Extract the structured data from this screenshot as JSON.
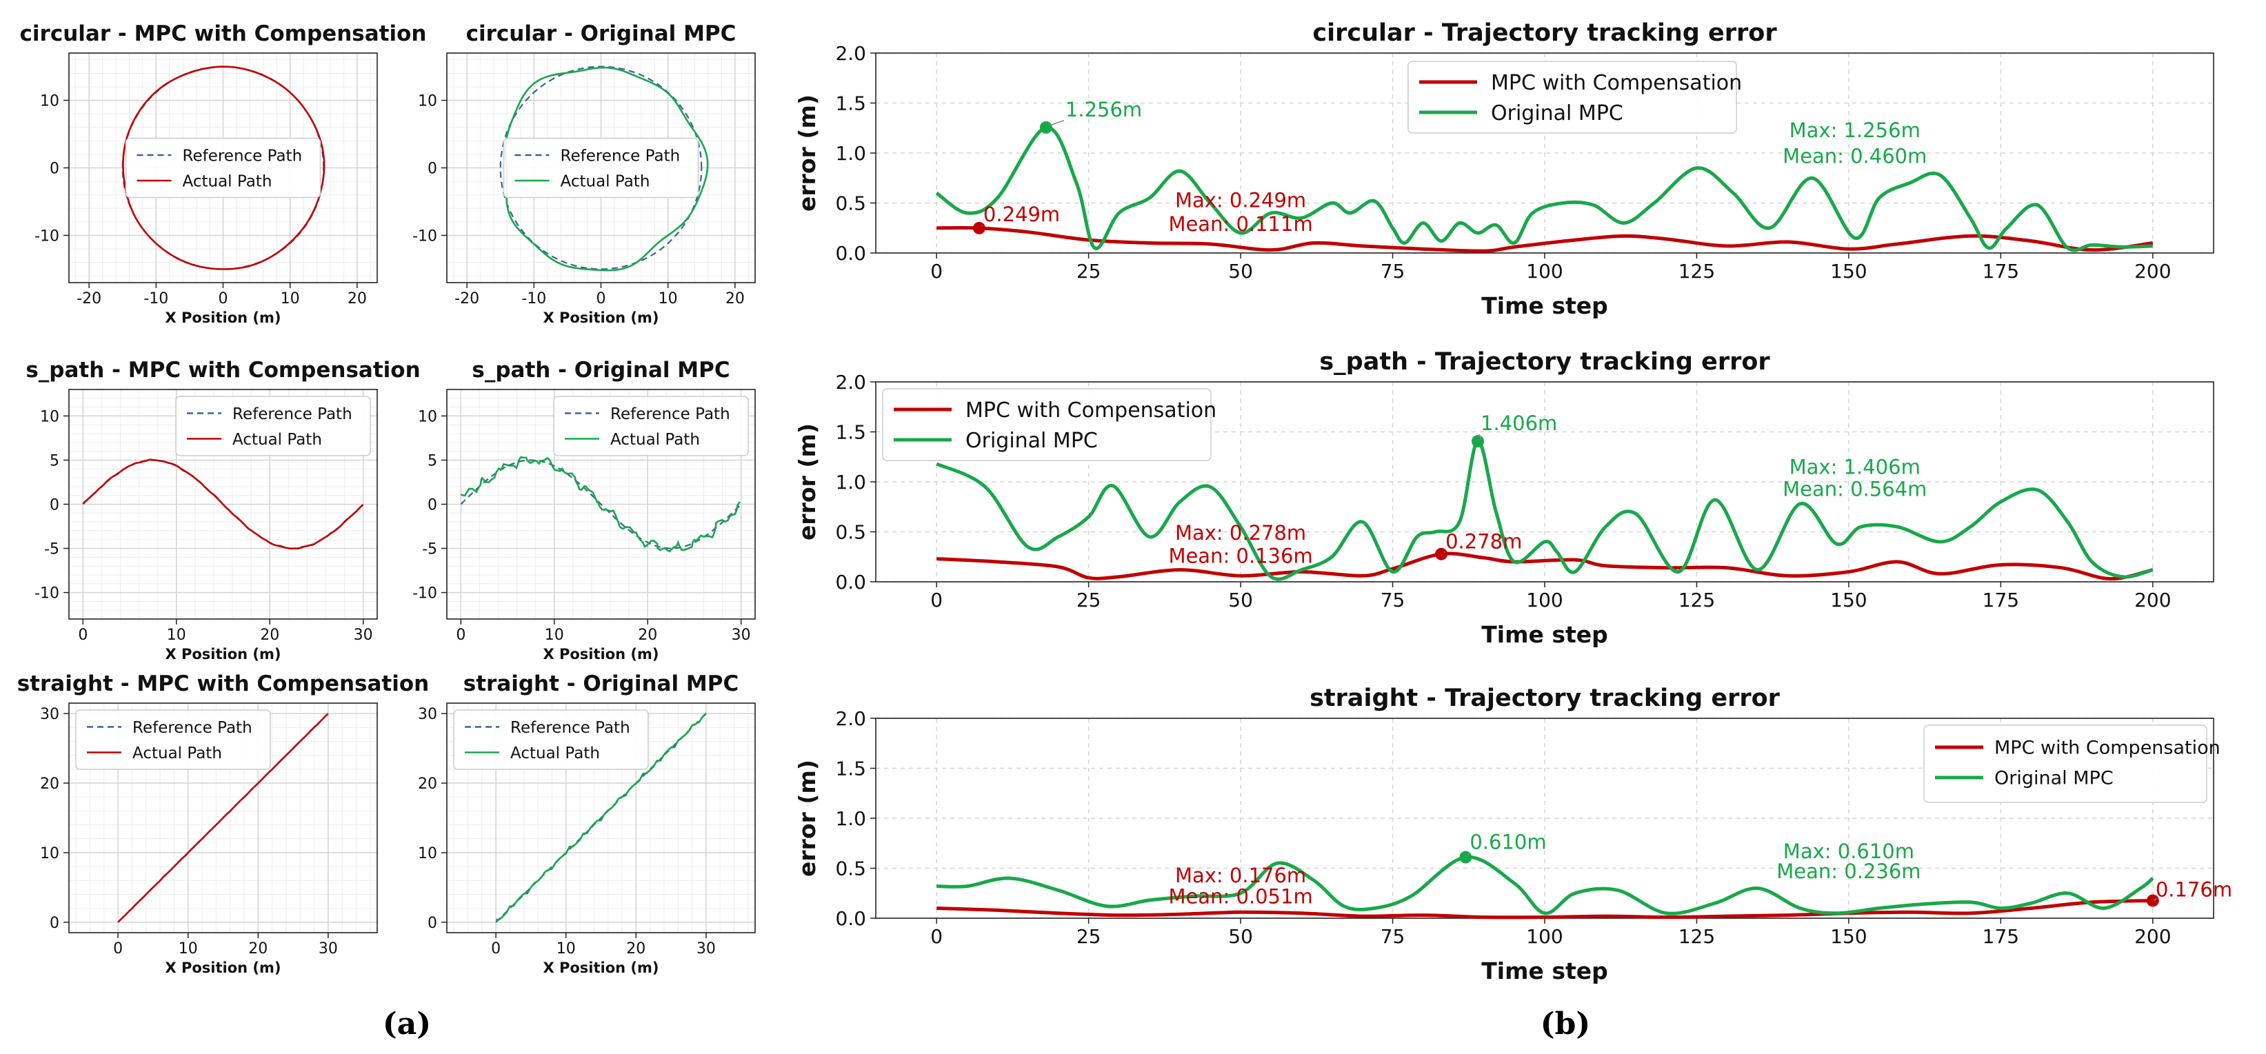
{
  "colors": {
    "comp": "#c00000",
    "orig": "#18a84a",
    "ref": "#3c5fa6",
    "grid": "#d4d4d4",
    "axis": "#222222"
  },
  "captions": {
    "a": "(a)",
    "b": "(b)"
  },
  "chart_data": [
    {
      "id": "circ-comp",
      "type": "line",
      "title": "circular - MPC with Compensation",
      "xlabel": "X Position (m)",
      "xlim": [
        -23,
        23
      ],
      "ylim": [
        -17,
        17
      ],
      "xticks": [
        -20,
        -10,
        0,
        10,
        20
      ],
      "yticks": [
        -10,
        0,
        10
      ],
      "legend": {
        "position": "center",
        "entries": [
          "Reference Path",
          "Actual Path"
        ]
      },
      "shape": "circle",
      "radius": 15,
      "actual_color": "comp"
    },
    {
      "id": "circ-orig",
      "type": "line",
      "title": "circular - Original MPC",
      "xlabel": "X Position (m)",
      "xlim": [
        -23,
        23
      ],
      "ylim": [
        -17,
        17
      ],
      "xticks": [
        -20,
        -10,
        0,
        10,
        20
      ],
      "yticks": [
        -10,
        0,
        10
      ],
      "legend": {
        "position": "center",
        "entries": [
          "Reference Path",
          "Actual Path"
        ]
      },
      "shape": "circle",
      "radius": 15,
      "actual_color": "orig"
    },
    {
      "id": "s-comp",
      "type": "line",
      "title": "s_path - MPC with Compensation",
      "xlabel": "X Position (m)",
      "xlim": [
        -1.5,
        31.5
      ],
      "ylim": [
        -13,
        13
      ],
      "xticks": [
        0,
        10,
        20,
        30
      ],
      "yticks": [
        -10,
        -5,
        0,
        5,
        10
      ],
      "legend": {
        "position": "top-right",
        "entries": [
          "Reference Path",
          "Actual Path"
        ]
      },
      "shape": "sine",
      "amplitude": 5,
      "length": 30,
      "actual_color": "comp"
    },
    {
      "id": "s-orig",
      "type": "line",
      "title": "s_path - Original MPC",
      "xlabel": "X Position (m)",
      "xlim": [
        -1.5,
        31.5
      ],
      "ylim": [
        -13,
        13
      ],
      "xticks": [
        0,
        10,
        20,
        30
      ],
      "yticks": [
        -10,
        -5,
        0,
        5,
        10
      ],
      "legend": {
        "position": "top-right",
        "entries": [
          "Reference Path",
          "Actual Path"
        ]
      },
      "shape": "sine",
      "amplitude": 5,
      "length": 30,
      "actual_color": "orig"
    },
    {
      "id": "st-comp",
      "type": "line",
      "title": "straight - MPC with Compensation",
      "xlabel": "X Position (m)",
      "xlim": [
        -7,
        37
      ],
      "ylim": [
        -1.5,
        31.5
      ],
      "xticks": [
        0,
        10,
        20,
        30
      ],
      "yticks": [
        0,
        10,
        20,
        30
      ],
      "legend": {
        "position": "top-left",
        "entries": [
          "Reference Path",
          "Actual Path"
        ]
      },
      "shape": "line",
      "length": 30,
      "actual_color": "comp"
    },
    {
      "id": "st-orig",
      "type": "line",
      "title": "straight - Original MPC",
      "xlabel": "X Position (m)",
      "xlim": [
        -7,
        37
      ],
      "ylim": [
        -1.5,
        31.5
      ],
      "xticks": [
        0,
        10,
        20,
        30
      ],
      "yticks": [
        0,
        10,
        20,
        30
      ],
      "legend": {
        "position": "top-left",
        "entries": [
          "Reference Path",
          "Actual Path"
        ]
      },
      "shape": "line",
      "length": 30,
      "actual_color": "orig"
    },
    {
      "id": "err-circ",
      "type": "line",
      "title": "circular - Trajectory tracking error",
      "xlabel": "Time step",
      "ylabel": "error (m)",
      "xlim": [
        -10,
        210
      ],
      "ylim": [
        0,
        2
      ],
      "xticks": [
        0,
        25,
        50,
        75,
        100,
        125,
        150,
        175,
        200
      ],
      "yticks": [
        0.0,
        0.5,
        1.0,
        1.5,
        2.0
      ],
      "legend": {
        "position": "top-center",
        "entries": [
          "MPC with Compensation",
          "Original MPC"
        ]
      },
      "series": [
        {
          "name": "MPC with Compensation",
          "x": [
            0,
            7,
            15,
            25,
            35,
            45,
            55,
            62,
            70,
            80,
            90,
            95,
            105,
            113,
            120,
            130,
            140,
            150,
            158,
            170,
            180,
            190,
            200
          ],
          "y": [
            0.25,
            0.249,
            0.21,
            0.13,
            0.1,
            0.09,
            0.03,
            0.1,
            0.07,
            0.04,
            0.02,
            0.06,
            0.13,
            0.17,
            0.14,
            0.07,
            0.11,
            0.04,
            0.09,
            0.17,
            0.12,
            0.03,
            0.1
          ]
        },
        {
          "name": "Original MPC",
          "x": [
            0,
            5,
            10,
            18,
            23,
            26,
            30,
            35,
            40,
            45,
            50,
            55,
            60,
            65,
            68,
            72,
            75,
            77,
            80,
            83,
            86,
            89,
            92,
            95,
            98,
            103,
            108,
            113,
            118,
            125,
            131,
            137,
            144,
            151,
            155,
            160,
            165,
            170,
            173,
            176,
            181,
            186,
            190,
            195,
            200
          ],
          "y": [
            0.6,
            0.4,
            0.55,
            1.256,
            0.7,
            0.05,
            0.4,
            0.55,
            0.82,
            0.5,
            0.2,
            0.4,
            0.35,
            0.5,
            0.4,
            0.52,
            0.25,
            0.1,
            0.3,
            0.12,
            0.3,
            0.2,
            0.28,
            0.1,
            0.4,
            0.5,
            0.48,
            0.3,
            0.5,
            0.85,
            0.6,
            0.25,
            0.75,
            0.15,
            0.55,
            0.7,
            0.78,
            0.35,
            0.05,
            0.25,
            0.48,
            0.05,
            0.08,
            0.06,
            0.07
          ]
        }
      ],
      "annotations": [
        {
          "text": "1.256m",
          "x": 18,
          "y": 1.256,
          "series": "Original MPC",
          "text_dx": 26,
          "text_dy": -16
        },
        {
          "text": "0.249m",
          "x": 7,
          "y": 0.249,
          "series": "MPC with Compensation",
          "text_dx": 4,
          "text_dy": -10
        },
        {
          "text": "Max: 1.256m",
          "x": 151,
          "y": 1.16,
          "color": "orig"
        },
        {
          "text": "Mean: 0.460m",
          "x": 151,
          "y": 0.9,
          "color": "orig"
        },
        {
          "text": "Max: 0.249m",
          "x": 50,
          "y": 0.46,
          "color": "comp"
        },
        {
          "text": "Mean: 0.111m",
          "x": 50,
          "y": 0.22,
          "color": "comp"
        }
      ]
    },
    {
      "id": "err-s",
      "type": "line",
      "title": "s_path - Trajectory tracking error",
      "xlabel": "Time step",
      "ylabel": "error (m)",
      "xlim": [
        -10,
        210
      ],
      "ylim": [
        0,
        2
      ],
      "xticks": [
        0,
        25,
        50,
        75,
        100,
        125,
        150,
        175,
        200
      ],
      "yticks": [
        0.0,
        0.5,
        1.0,
        1.5,
        2.0
      ],
      "legend": {
        "position": "top-left",
        "entries": [
          "MPC with Compensation",
          "Original MPC"
        ]
      },
      "series": [
        {
          "name": "MPC with Compensation",
          "x": [
            0,
            10,
            20,
            25,
            30,
            40,
            50,
            60,
            70,
            75,
            83,
            90,
            95,
            105,
            110,
            120,
            130,
            140,
            150,
            158,
            165,
            175,
            185,
            193,
            200
          ],
          "y": [
            0.23,
            0.2,
            0.15,
            0.04,
            0.05,
            0.12,
            0.06,
            0.1,
            0.06,
            0.13,
            0.278,
            0.24,
            0.2,
            0.22,
            0.16,
            0.14,
            0.14,
            0.06,
            0.1,
            0.2,
            0.08,
            0.17,
            0.14,
            0.03,
            0.12
          ]
        },
        {
          "name": "Original MPC",
          "x": [
            0,
            8,
            15,
            20,
            25,
            29,
            35,
            40,
            45,
            50,
            55,
            60,
            65,
            70,
            75,
            79,
            82,
            86,
            89,
            92,
            95,
            100,
            102,
            105,
            110,
            115,
            122,
            128,
            135,
            142,
            148,
            152,
            158,
            165,
            170,
            175,
            181,
            186,
            190,
            195,
            200
          ],
          "y": [
            1.18,
            0.95,
            0.35,
            0.45,
            0.65,
            0.96,
            0.45,
            0.8,
            0.95,
            0.55,
            0.05,
            0.12,
            0.25,
            0.6,
            0.1,
            0.45,
            0.5,
            0.6,
            1.406,
            0.7,
            0.2,
            0.4,
            0.3,
            0.1,
            0.55,
            0.68,
            0.1,
            0.82,
            0.12,
            0.78,
            0.38,
            0.55,
            0.55,
            0.4,
            0.55,
            0.8,
            0.92,
            0.6,
            0.2,
            0.05,
            0.12
          ]
        }
      ],
      "annotations": [
        {
          "text": "1.406m",
          "x": 89,
          "y": 1.406,
          "series": "Original MPC",
          "text_dx": 2,
          "text_dy": -16
        },
        {
          "text": "0.278m",
          "x": 83,
          "y": 0.278,
          "series": "MPC with Compensation",
          "text_dx": 4,
          "text_dy": -8
        },
        {
          "text": "Max: 1.406m",
          "x": 151,
          "y": 1.08,
          "color": "orig"
        },
        {
          "text": "Mean: 0.564m",
          "x": 151,
          "y": 0.86,
          "color": "orig"
        },
        {
          "text": "Max: 0.278m",
          "x": 50,
          "y": 0.42,
          "color": "comp"
        },
        {
          "text": "Mean: 0.136m",
          "x": 50,
          "y": 0.19,
          "color": "comp"
        }
      ]
    },
    {
      "id": "err-st",
      "type": "line",
      "title": "straight - Trajectory tracking error",
      "xlabel": "Time step",
      "ylabel": "error (m)",
      "xlim": [
        -10,
        210
      ],
      "ylim": [
        0,
        2
      ],
      "xticks": [
        0,
        25,
        50,
        75,
        100,
        125,
        150,
        175,
        200
      ],
      "yticks": [
        0.0,
        0.5,
        1.0,
        1.5,
        2.0
      ],
      "legend": {
        "position": "top-right",
        "entries": [
          "MPC with Compensation",
          "Original MPC"
        ]
      },
      "series": [
        {
          "name": "MPC with Compensation",
          "x": [
            0,
            10,
            20,
            30,
            40,
            50,
            60,
            70,
            80,
            90,
            100,
            110,
            120,
            130,
            140,
            150,
            160,
            170,
            180,
            190,
            200
          ],
          "y": [
            0.1,
            0.08,
            0.05,
            0.03,
            0.04,
            0.06,
            0.05,
            0.02,
            0.03,
            0.01,
            0.01,
            0.02,
            0.01,
            0.02,
            0.03,
            0.05,
            0.06,
            0.05,
            0.1,
            0.16,
            0.176
          ]
        },
        {
          "name": "Original MPC",
          "x": [
            0,
            5,
            12,
            20,
            28,
            35,
            42,
            50,
            56,
            62,
            67,
            72,
            78,
            87,
            95,
            100,
            105,
            112,
            120,
            128,
            135,
            142,
            148,
            155,
            162,
            170,
            175,
            180,
            186,
            192,
            198,
            200
          ],
          "y": [
            0.32,
            0.32,
            0.4,
            0.28,
            0.12,
            0.18,
            0.22,
            0.25,
            0.55,
            0.38,
            0.12,
            0.1,
            0.22,
            0.61,
            0.35,
            0.05,
            0.25,
            0.28,
            0.05,
            0.15,
            0.3,
            0.1,
            0.05,
            0.1,
            0.14,
            0.16,
            0.1,
            0.15,
            0.25,
            0.1,
            0.3,
            0.4
          ]
        }
      ],
      "annotations": [
        {
          "text": "0.610m",
          "x": 87,
          "y": 0.61,
          "series": "Original MPC",
          "text_dx": 4,
          "text_dy": -12
        },
        {
          "text": "0.176m",
          "x": 200,
          "y": 0.176,
          "series": "MPC with Compensation",
          "text_dx": 2,
          "text_dy": -6
        },
        {
          "text": "Max: 0.610m",
          "x": 150,
          "y": 0.6,
          "color": "orig"
        },
        {
          "text": "Mean: 0.236m",
          "x": 150,
          "y": 0.4,
          "color": "orig"
        },
        {
          "text": "Max: 0.176m",
          "x": 50,
          "y": 0.36,
          "color": "comp"
        },
        {
          "text": "Mean: 0.051m",
          "x": 50,
          "y": 0.15,
          "color": "comp"
        }
      ]
    }
  ]
}
